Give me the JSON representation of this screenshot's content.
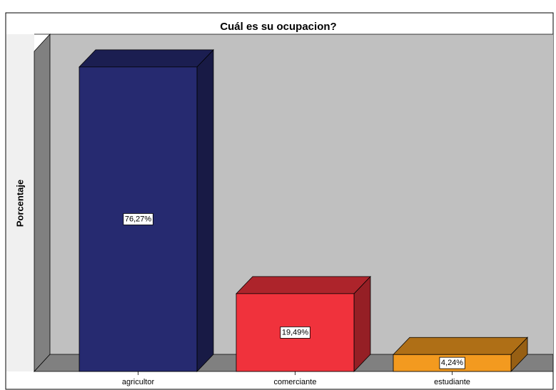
{
  "chart_data": {
    "type": "bar3d",
    "title": "Cuál es su ocupacion?",
    "ylabel": "Porcentaje",
    "categories": [
      "agricultor",
      "comerciante",
      "estudiante"
    ],
    "values": [
      76.27,
      19.49,
      4.24
    ],
    "value_labels": [
      "76,27%",
      "19,49%",
      "4,24%"
    ],
    "colors": [
      "#262a70",
      "#f0323c",
      "#f39a1f"
    ],
    "ylim": [
      0,
      80
    ]
  }
}
